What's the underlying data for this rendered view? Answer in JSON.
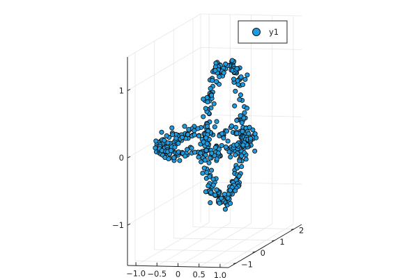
{
  "chart_data": {
    "type": "scatter",
    "projection": "3d",
    "title": "",
    "xlabel": "",
    "ylabel": "",
    "zlabel": "",
    "xlim": [
      -1.2,
      1.2
    ],
    "ylim": [
      -1.4,
      2.4
    ],
    "zlim": [
      -1.6,
      1.5
    ],
    "xticks": [
      -1.0,
      -0.5,
      0,
      0.5,
      1.0
    ],
    "xtick_labels": [
      "−1.0",
      "−0.5",
      "0",
      "0.5",
      "1.0"
    ],
    "yticks": [
      -1,
      0,
      1,
      2
    ],
    "ytick_labels": [
      "−1",
      "0",
      "1",
      "2"
    ],
    "zticks": [
      -1,
      0,
      1
    ],
    "ztick_labels": [
      "−1",
      "0",
      "1"
    ],
    "grid": true,
    "legend": {
      "position": "top-right",
      "entries": [
        "y1"
      ]
    },
    "series": [
      {
        "name": "y1",
        "color": "#1f9ce0",
        "description": "two interlocking noisy rings (~500 points)",
        "rings": [
          {
            "center": [
              0,
              0,
              0
            ],
            "radius": 1.0,
            "plane": "xy"
          },
          {
            "center": [
              0,
              1,
              0
            ],
            "radius": 1.0,
            "plane": "yz"
          }
        ],
        "count": 500,
        "noise": 0.06
      }
    ]
  }
}
